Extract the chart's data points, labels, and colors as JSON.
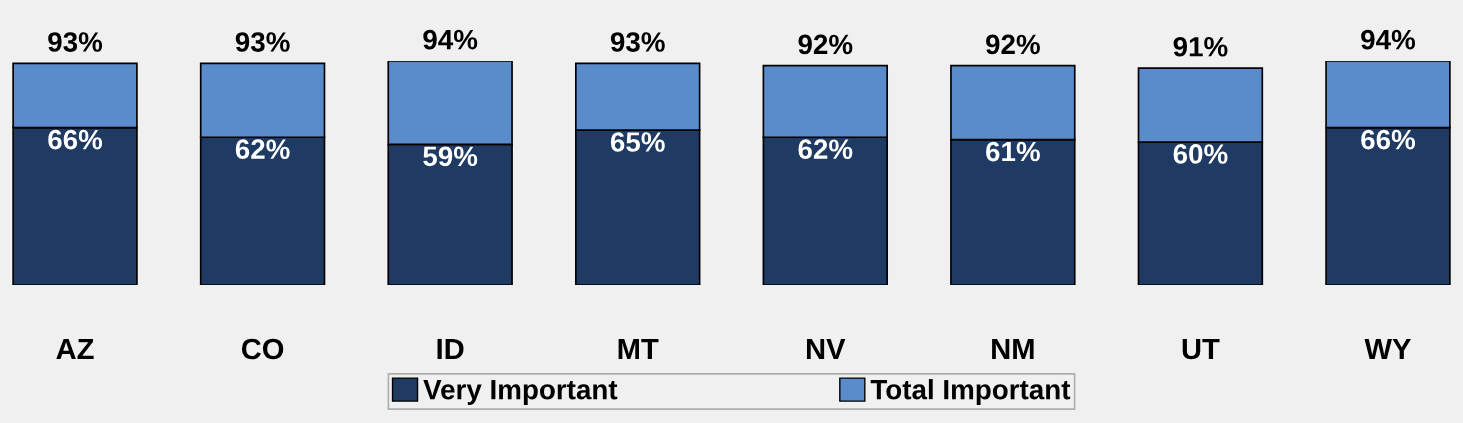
{
  "chart_data": {
    "type": "bar",
    "stacked": true,
    "categories": [
      "AZ",
      "CO",
      "ID",
      "MT",
      "NV",
      "NM",
      "UT",
      "WY"
    ],
    "series": [
      {
        "name": "Very Important",
        "color": "#1f3a63",
        "values": [
          66,
          62,
          59,
          65,
          62,
          61,
          60,
          66
        ],
        "value_labels": [
          "66%",
          "62%",
          "59%",
          "65%",
          "62%",
          "61%",
          "60%",
          "66%"
        ]
      },
      {
        "name": "Total Important",
        "color": "#5a8ccc",
        "values": [
          27,
          31,
          35,
          28,
          30,
          31,
          31,
          28
        ]
      }
    ],
    "totals": [
      "93%",
      "93%",
      "94%",
      "93%",
      "92%",
      "92%",
      "91%",
      "94%"
    ],
    "legend": "bottom",
    "grid": false
  }
}
